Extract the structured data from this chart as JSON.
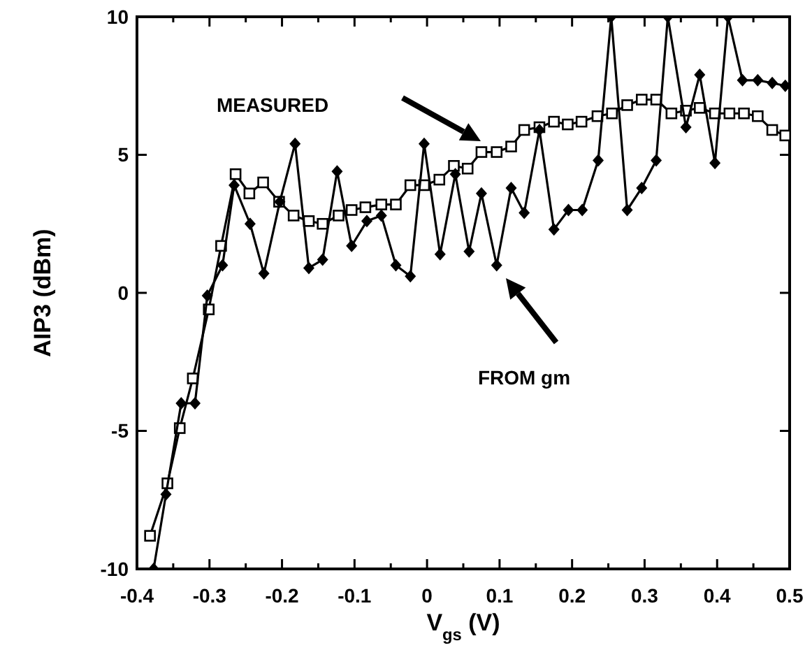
{
  "chart_data": {
    "type": "line",
    "xlabel": "V$_{gs}$ (V)",
    "ylabel": "AIP3 (dBm)",
    "xlim": [
      -0.4,
      0.5
    ],
    "ylim": [
      -10,
      10
    ],
    "xticks": [
      -0.4,
      {
        "value": -0.35,
        "label": null
      },
      -0.3,
      {
        "value": -0.25,
        "label": null
      },
      -0.2,
      {
        "value": -0.15,
        "label": null
      },
      -0.1,
      {
        "value": -0.05,
        "label": null
      },
      0.0,
      {
        "value": 0.05,
        "label": null
      },
      0.1,
      {
        "value": 0.15,
        "label": null
      },
      0.2,
      {
        "value": 0.25,
        "label": null
      },
      0.3,
      {
        "value": 0.35,
        "label": null
      },
      0.4,
      {
        "value": 0.45,
        "label": null
      },
      0.5
    ],
    "yticks": [
      -10,
      -5,
      0,
      5,
      10
    ],
    "grid": false,
    "series": [
      {
        "color": "#000000",
        "marker": "square",
        "x": [
          -0.382,
          -0.358,
          -0.341,
          -0.323,
          -0.301,
          -0.284,
          -0.264,
          -0.245,
          -0.226,
          -0.204,
          -0.184,
          -0.163,
          -0.144,
          -0.122,
          -0.104,
          -0.085,
          -0.063,
          -0.043,
          -0.023,
          -0.004,
          0.017,
          0.037,
          0.056,
          0.075,
          0.096,
          0.116,
          0.134,
          0.155,
          0.175,
          0.194,
          0.213,
          0.235,
          0.255,
          0.276,
          0.296,
          0.316,
          0.337,
          0.357,
          0.376,
          0.397,
          0.417,
          0.437,
          0.456,
          0.476,
          0.494
        ],
        "values": [
          -8.8,
          -6.9,
          -4.9,
          -3.1,
          -0.6,
          1.7,
          4.3,
          3.6,
          4.0,
          3.3,
          2.8,
          2.6,
          2.5,
          2.8,
          3.0,
          3.1,
          3.2,
          3.2,
          3.9,
          3.9,
          4.1,
          4.6,
          4.5,
          5.1,
          5.1,
          5.3,
          5.9,
          6.0,
          6.2,
          6.1,
          6.2,
          6.4,
          6.5,
          6.8,
          7.0,
          7.0,
          6.5,
          6.6,
          6.7,
          6.5,
          6.5,
          6.5,
          6.4,
          5.9,
          5.7
        ]
      },
      {
        "color": "#000000",
        "marker": "diamond",
        "x": [
          -0.377,
          -0.36,
          -0.339,
          -0.32,
          -0.303,
          -0.282,
          -0.266,
          -0.244,
          -0.225,
          -0.203,
          -0.182,
          -0.163,
          -0.144,
          -0.124,
          -0.104,
          -0.083,
          -0.063,
          -0.043,
          -0.023,
          -0.004,
          0.018,
          0.039,
          0.058,
          0.075,
          0.096,
          0.116,
          0.134,
          0.155,
          0.175,
          0.195,
          0.214,
          0.236,
          0.254,
          0.276,
          0.296,
          0.316,
          0.332,
          0.357,
          0.376,
          0.397,
          0.415,
          0.435,
          0.456,
          0.476,
          0.494
        ],
        "values": [
          -10,
          -7.3,
          -4.0,
          -4.0,
          -0.1,
          1.0,
          3.9,
          2.5,
          0.7,
          3.3,
          5.4,
          0.9,
          1.2,
          4.4,
          1.7,
          2.6,
          2.8,
          1.0,
          0.6,
          5.4,
          1.4,
          4.3,
          1.5,
          3.6,
          1.0,
          3.8,
          2.9,
          5.9,
          2.3,
          3.0,
          3.0,
          4.8,
          10,
          3.0,
          3.8,
          4.8,
          10,
          6.0,
          7.9,
          4.7,
          10,
          7.7,
          7.7,
          7.6,
          7.5
        ]
      }
    ],
    "annotations": [
      "MEASURED",
      "FROM gm"
    ]
  }
}
